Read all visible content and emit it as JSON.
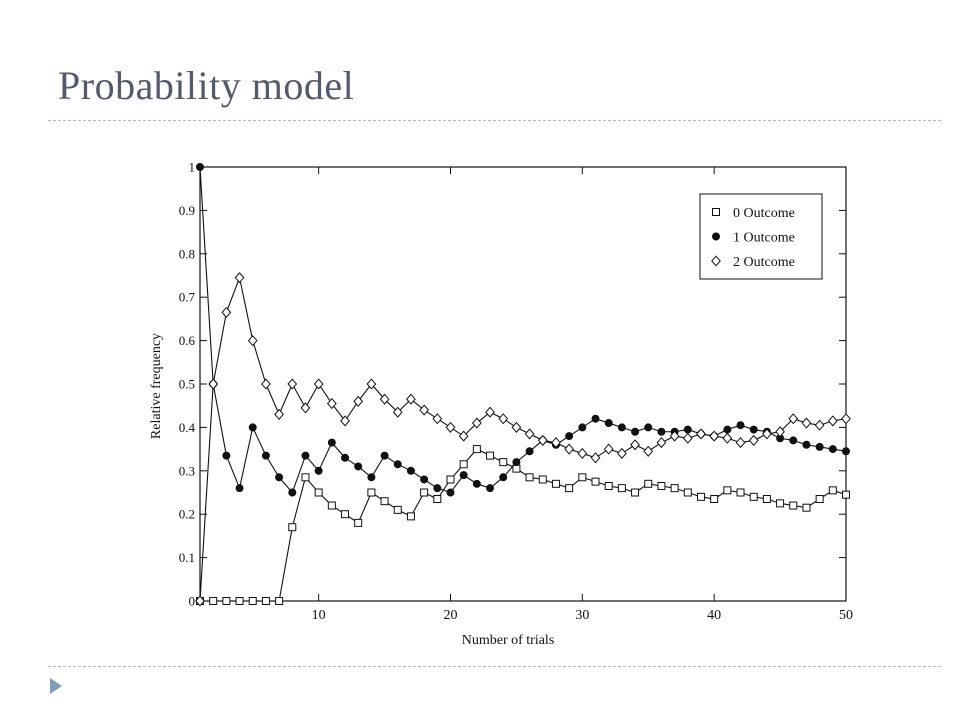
{
  "slide": {
    "title": "Probability model",
    "bullet_icon": "triangle-bullet-icon"
  },
  "chart_data": {
    "type": "line",
    "xlabel": "Number of trials",
    "ylabel": "Relative frequency",
    "xlim": [
      1,
      50
    ],
    "ylim": [
      0,
      1
    ],
    "xticks": [
      10,
      20,
      30,
      40,
      50
    ],
    "yticks": [
      0,
      0.1,
      0.2,
      0.3,
      0.4,
      0.5,
      0.6,
      0.7,
      0.8,
      0.9,
      1
    ],
    "ytick_labels": [
      "0",
      "0.1",
      "0.2",
      "0.3",
      "0.4",
      "0.5",
      "0.6",
      "0.7",
      "0.8",
      "0.9",
      "1"
    ],
    "legend_position": "top-right",
    "grid": false,
    "x": [
      1,
      2,
      3,
      4,
      5,
      6,
      7,
      8,
      9,
      10,
      11,
      12,
      13,
      14,
      15,
      16,
      17,
      18,
      19,
      20,
      21,
      22,
      23,
      24,
      25,
      26,
      27,
      28,
      29,
      30,
      31,
      32,
      33,
      34,
      35,
      36,
      37,
      38,
      39,
      40,
      41,
      42,
      43,
      44,
      45,
      46,
      47,
      48,
      49,
      50
    ],
    "series": [
      {
        "name": "0 Outcome",
        "marker": "open-square",
        "values": [
          0,
          0,
          0,
          0,
          0,
          0,
          0,
          0.17,
          0.285,
          0.25,
          0.22,
          0.2,
          0.18,
          0.25,
          0.23,
          0.21,
          0.195,
          0.25,
          0.235,
          0.28,
          0.315,
          0.35,
          0.335,
          0.32,
          0.305,
          0.285,
          0.28,
          0.27,
          0.26,
          0.285,
          0.275,
          0.265,
          0.26,
          0.25,
          0.27,
          0.265,
          0.26,
          0.25,
          0.24,
          0.235,
          0.255,
          0.25,
          0.24,
          0.235,
          0.225,
          0.22,
          0.215,
          0.235,
          0.255,
          0.245
        ]
      },
      {
        "name": "1 Outcome",
        "marker": "filled-circle",
        "values": [
          1,
          0.5,
          0.335,
          0.26,
          0.4,
          0.335,
          0.285,
          0.25,
          0.335,
          0.3,
          0.365,
          0.33,
          0.31,
          0.285,
          0.335,
          0.315,
          0.3,
          0.28,
          0.26,
          0.25,
          0.29,
          0.27,
          0.26,
          0.285,
          0.32,
          0.345,
          0.37,
          0.36,
          0.38,
          0.4,
          0.42,
          0.41,
          0.4,
          0.39,
          0.4,
          0.39,
          0.39,
          0.395,
          0.385,
          0.38,
          0.395,
          0.405,
          0.395,
          0.39,
          0.375,
          0.37,
          0.36,
          0.355,
          0.35,
          0.345
        ]
      },
      {
        "name": "2 Outcome",
        "marker": "open-diamond",
        "values": [
          0,
          0.5,
          0.665,
          0.745,
          0.6,
          0.5,
          0.43,
          0.5,
          0.445,
          0.5,
          0.455,
          0.415,
          0.46,
          0.5,
          0.465,
          0.435,
          0.465,
          0.44,
          0.42,
          0.4,
          0.38,
          0.41,
          0.435,
          0.42,
          0.4,
          0.385,
          0.37,
          0.365,
          0.35,
          0.34,
          0.33,
          0.35,
          0.34,
          0.36,
          0.345,
          0.365,
          0.38,
          0.375,
          0.385,
          0.38,
          0.375,
          0.365,
          0.37,
          0.385,
          0.39,
          0.42,
          0.41,
          0.405,
          0.415,
          0.42
        ]
      }
    ]
  }
}
